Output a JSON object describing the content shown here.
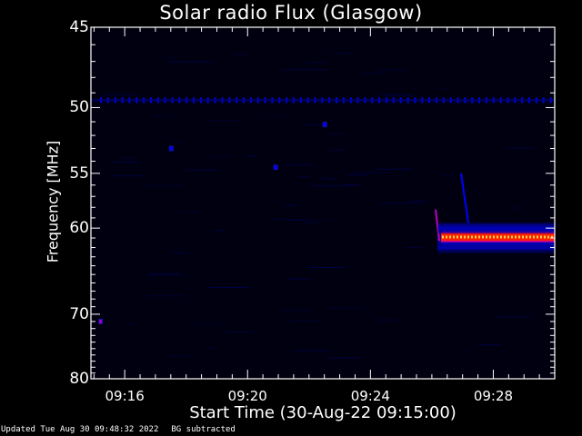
{
  "chart_data": {
    "type": "heatmap",
    "title": "Solar radio Flux (Glasgow)",
    "xlabel": "Start Time (30-Aug-22 09:15:00)",
    "ylabel": "Frequency [MHz]",
    "x_ticks": [
      "09:16",
      "09:20",
      "09:24",
      "09:28"
    ],
    "x_tick_minutes": [
      1,
      5,
      9,
      13
    ],
    "x_range_minutes": [
      -0.1,
      15.0
    ],
    "y_ticks": [
      45,
      50,
      55,
      60,
      70,
      80
    ],
    "y_range": [
      45,
      80
    ],
    "y_scale": "reciprocal",
    "colors": {
      "background": "#000000",
      "axis": "#ffffff",
      "low": "#000060",
      "mid": "#0000ff",
      "high": "#ff2000",
      "peak": "#ffd040"
    },
    "features": [
      {
        "name": "interference-line",
        "freq": 49.5,
        "t_start": -0.1,
        "t_end": 15.0,
        "intensity": 0.45
      },
      {
        "name": "burst-main",
        "freq": 60.9,
        "t_start": 11.3,
        "t_end": 15.0,
        "intensity": 1.0
      },
      {
        "name": "burst-band-upper",
        "freq": 60.0,
        "t_start": 11.2,
        "t_end": 15.0,
        "intensity": 0.5
      },
      {
        "name": "burst-band-lower",
        "freq": 62.0,
        "t_start": 11.2,
        "t_end": 15.0,
        "intensity": 0.45
      },
      {
        "name": "spot-1",
        "freq": 71.0,
        "t": 0.2,
        "intensity": 0.7
      },
      {
        "name": "spot-2",
        "freq": 54.5,
        "t": 5.9,
        "intensity": 0.55
      },
      {
        "name": "spot-3",
        "freq": 51.2,
        "t": 7.5,
        "intensity": 0.45
      },
      {
        "name": "spot-4",
        "freq": 53.0,
        "t": 2.5,
        "intensity": 0.3
      }
    ]
  },
  "footer": {
    "updated": "Updated Tue Aug 30 09:48:32 2022",
    "note": "BG subtracted"
  }
}
